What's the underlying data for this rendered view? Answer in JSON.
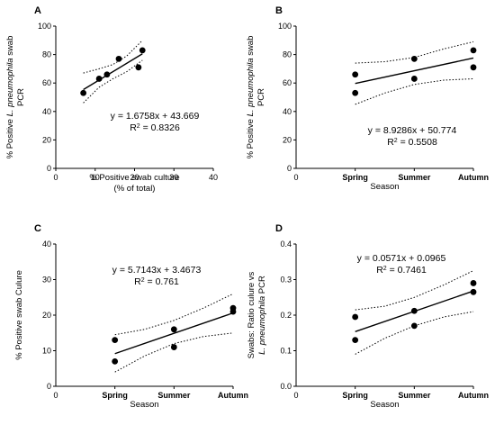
{
  "chart_data": [
    {
      "panel": "A",
      "type": "scatter",
      "xlabel": [
        "% Positive swab culture",
        "(% of total)"
      ],
      "ylabel": [
        "% Positive L. pneumophila swab",
        "PCR"
      ],
      "xlim": [
        0,
        40
      ],
      "ylim": [
        0,
        100
      ],
      "xticks": [
        "0",
        "10",
        "20",
        "30",
        "40"
      ],
      "yticks": [
        "0",
        "20",
        "40",
        "60",
        "80",
        "100"
      ],
      "points": [
        [
          7,
          53
        ],
        [
          11,
          63
        ],
        [
          13,
          66
        ],
        [
          16,
          77
        ],
        [
          21,
          71
        ],
        [
          22,
          83
        ]
      ],
      "fit": {
        "slope": 1.6758,
        "intercept": 43.669,
        "x_range": [
          7,
          22
        ]
      },
      "ci_lower": [
        [
          7,
          46
        ],
        [
          11,
          57
        ],
        [
          14.5,
          63
        ],
        [
          18,
          68
        ],
        [
          22,
          76
        ]
      ],
      "ci_upper": [
        [
          7,
          67
        ],
        [
          11,
          70
        ],
        [
          14.5,
          73
        ],
        [
          18,
          79
        ],
        [
          22,
          90
        ]
      ],
      "equation": "y = 1.6758x + 43.669",
      "r2_label": "R",
      "r2_value": " = 0.8326"
    },
    {
      "panel": "B",
      "type": "scatter",
      "xlabel": [
        "Season"
      ],
      "ylabel": [
        "% Positive L. pneumophila swab",
        "PCR"
      ],
      "categories": [
        "Spring",
        "Summer",
        "Autumn"
      ],
      "xlim": [
        0,
        3
      ],
      "ylim": [
        0,
        100
      ],
      "x_origin_label": "0",
      "yticks": [
        "0",
        "20",
        "40",
        "60",
        "80",
        "100"
      ],
      "points": [
        [
          1,
          53
        ],
        [
          1,
          66
        ],
        [
          2,
          77
        ],
        [
          2,
          63
        ],
        [
          3,
          83
        ],
        [
          3,
          71
        ]
      ],
      "fit": {
        "slope": 8.9286,
        "intercept": 50.774,
        "x_range": [
          1,
          3
        ]
      },
      "ci_lower": [
        [
          1,
          45
        ],
        [
          1.5,
          53
        ],
        [
          2,
          59
        ],
        [
          2.5,
          62
        ],
        [
          3,
          63
        ]
      ],
      "ci_upper": [
        [
          1,
          74
        ],
        [
          1.5,
          75
        ],
        [
          2,
          78
        ],
        [
          2.5,
          84
        ],
        [
          3,
          89
        ]
      ],
      "equation": "y = 8.9286x + 50.774",
      "r2_label": "R",
      "r2_value": " = 0.5508"
    },
    {
      "panel": "C",
      "type": "scatter",
      "xlabel": [
        "Season"
      ],
      "ylabel": [
        "% Positive swab Culure"
      ],
      "categories": [
        "Spring",
        "Summer",
        "Autumn"
      ],
      "xlim": [
        0,
        3
      ],
      "ylim": [
        0,
        40
      ],
      "x_origin_label": "0",
      "yticks": [
        "0",
        "10",
        "20",
        "30",
        "40"
      ],
      "points": [
        [
          1,
          13
        ],
        [
          1,
          7
        ],
        [
          2,
          16
        ],
        [
          2,
          11
        ],
        [
          3,
          22
        ],
        [
          3,
          21
        ]
      ],
      "fit": {
        "slope": 5.7143,
        "intercept": 3.4673,
        "x_range": [
          1,
          3
        ]
      },
      "ci_lower": [
        [
          1,
          4
        ],
        [
          1.5,
          8.5
        ],
        [
          2,
          12
        ],
        [
          2.5,
          14
        ],
        [
          3,
          15
        ]
      ],
      "ci_upper": [
        [
          1,
          14.5
        ],
        [
          1.5,
          16
        ],
        [
          2,
          18.5
        ],
        [
          2.5,
          22
        ],
        [
          3,
          26
        ]
      ],
      "equation": "y = 5.7143x + 3.4673",
      "r2_label": "R",
      "r2_value": " = 0.761"
    },
    {
      "panel": "D",
      "type": "scatter",
      "xlabel": [
        "Season"
      ],
      "ylabel": [
        "Swabs: Ratio culure vs",
        "L. pneumophila PCR"
      ],
      "categories": [
        "Spring",
        "Summer",
        "Autumn"
      ],
      "xlim": [
        0,
        3
      ],
      "ylim": [
        0,
        0.4
      ],
      "x_origin_label": "0",
      "yticks": [
        "0.0",
        "0.1",
        "0.2",
        "0.3",
        "0.4"
      ],
      "points": [
        [
          1,
          0.195
        ],
        [
          1,
          0.13
        ],
        [
          2,
          0.212
        ],
        [
          2,
          0.17
        ],
        [
          3,
          0.29
        ],
        [
          3,
          0.265
        ]
      ],
      "fit": {
        "slope": 0.0571,
        "intercept": 0.0965,
        "x_range": [
          1,
          3
        ]
      },
      "ci_lower": [
        [
          1,
          0.09
        ],
        [
          1.5,
          0.135
        ],
        [
          2,
          0.17
        ],
        [
          2.5,
          0.195
        ],
        [
          3,
          0.21
        ]
      ],
      "ci_upper": [
        [
          1,
          0.215
        ],
        [
          1.5,
          0.225
        ],
        [
          2,
          0.25
        ],
        [
          2.5,
          0.285
        ],
        [
          3,
          0.325
        ]
      ],
      "equation": "y = 0.0571x + 0.0965",
      "r2_label": "R",
      "r2_value": " = 0.7461"
    }
  ]
}
